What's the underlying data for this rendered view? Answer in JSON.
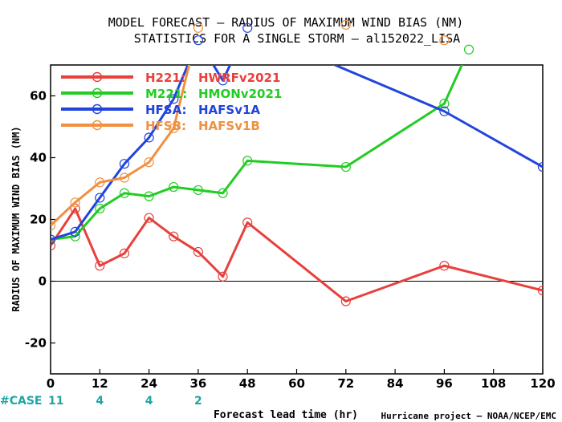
{
  "chart_data": {
    "type": "line",
    "title_line1": "MODEL FORECAST – RADIUS OF MAXIMUM WIND BIAS (NM)",
    "title_line2": "STATISTICS FOR A SINGLE STORM – al152022_LISA",
    "xlabel": "Forecast lead time (hr)",
    "ylabel": "RADIUS OF MAXIMUM WIND BIAS (NM)",
    "credit": "Hurricane project – NOAA/NCEP/EMC",
    "xlim": [
      0,
      120
    ],
    "ylim": [
      -30,
      70
    ],
    "x_ticks": [
      0,
      12,
      24,
      36,
      48,
      60,
      72,
      84,
      96,
      108,
      120
    ],
    "x_tick_labels": [
      "0",
      "12",
      "24",
      "36",
      "48",
      "60",
      "72",
      "84",
      "96",
      "108",
      "120"
    ],
    "y_ticks": [
      -20,
      0,
      20,
      40,
      60
    ],
    "y_tick_labels": [
      "-20",
      "0",
      "20",
      "40",
      "60"
    ],
    "zero_line": true,
    "legend_position": "top-left",
    "case_label": "#CASE",
    "case_counts": [
      {
        "x": 0,
        "label": "11"
      },
      {
        "x": 12,
        "label": "4"
      },
      {
        "x": 24,
        "label": "4"
      },
      {
        "x": 36,
        "label": "2"
      }
    ],
    "series": [
      {
        "name": "H221:",
        "desc": "HWRFv2021",
        "color": "#e8403c",
        "x": [
          0,
          6,
          12,
          18,
          24,
          30,
          36,
          42,
          48,
          72,
          96,
          120
        ],
        "y": [
          11.5,
          23.5,
          5,
          9,
          20.5,
          14.5,
          9.5,
          1.5,
          19,
          -6.5,
          5,
          -3
        ]
      },
      {
        "name": "M221:",
        "desc": "HMONv2021",
        "color": "#22cc22",
        "x": [
          0,
          6,
          12,
          18,
          24,
          30,
          36,
          42,
          48,
          72,
          96,
          102
        ],
        "y": [
          13.5,
          14.5,
          23.5,
          28.5,
          27.5,
          30.5,
          29.5,
          28.5,
          39,
          37,
          57.5,
          75
        ]
      },
      {
        "name": "HFSA:",
        "desc": "HAFSv1A",
        "color": "#2244dd",
        "x": [
          0,
          6,
          12,
          18,
          24,
          30,
          36,
          42,
          48,
          96,
          120
        ],
        "y": [
          13.5,
          16,
          27,
          38,
          46.5,
          59,
          78,
          65,
          82,
          55,
          37
        ]
      },
      {
        "name": "HFSB:",
        "desc": "HAFSv1B",
        "color": "#f09040",
        "x": [
          0,
          6,
          12,
          18,
          24,
          30,
          36,
          72,
          96
        ],
        "y": [
          18,
          25.5,
          32,
          33.5,
          38.5,
          49.5,
          82,
          83,
          78
        ]
      }
    ]
  }
}
